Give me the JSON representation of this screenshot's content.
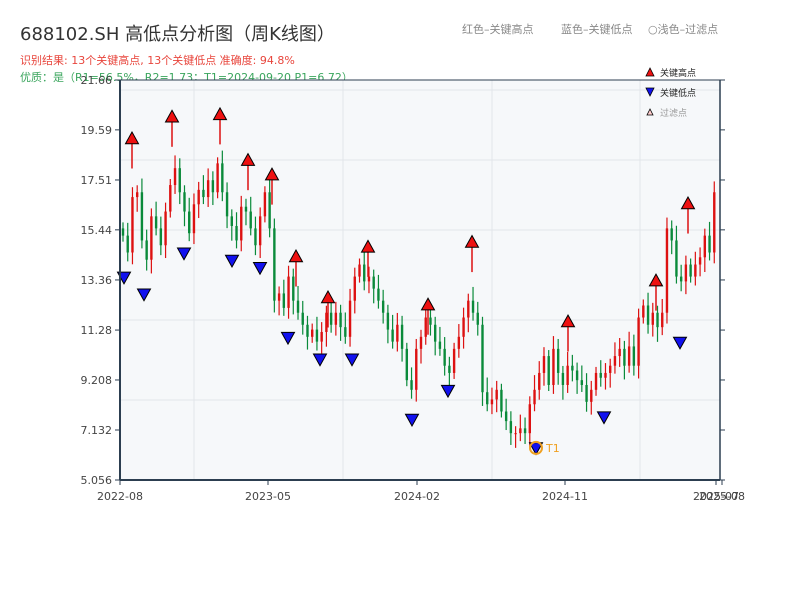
{
  "header": {
    "title": "688102.SH 高低点分析图（周K线图）",
    "result_line": "识别结果: 13个关键高点, 13个关键低点   准确度: 94.8%",
    "quality_line": "优质：是（R1=56.5%，R2=1.73；T1=2024-09-20 P1=6.72）"
  },
  "top_legend": {
    "red": "红色–关键高点",
    "blue": "蓝色–关键低点",
    "light": "○浅色–过滤点"
  },
  "legend": {
    "items": [
      {
        "label": "关键高点",
        "color": "#ee1111",
        "shape": "triangle-up"
      },
      {
        "label": "关键低点",
        "color": "#1111ee",
        "shape": "triangle-down"
      },
      {
        "label": "过滤点",
        "color": "#ffcccc",
        "shape": "triangle-up-hollow"
      }
    ]
  },
  "colors": {
    "up": "#dd1111",
    "down": "#0a8a3a",
    "high_marker": "#ee1111",
    "low_marker": "#1111ee",
    "t1_ring": "#f0a020",
    "plot_bg": "#f6f8fa",
    "grid": "#e2e6ea",
    "axis": "#2c3e50"
  },
  "annotation": {
    "label": "T1",
    "date": "2024-09-20",
    "price": 6.72
  },
  "chart_data": {
    "type": "candlestick",
    "title": "688102.SH 高低点分析图（周K线图）",
    "xlabel": "",
    "ylabel": "",
    "ylim": [
      5.056,
      21.66
    ],
    "yticks": [
      "5.056",
      "7.132",
      "9.208",
      "11.28",
      "13.36",
      "15.44",
      "17.51",
      "19.59",
      "21.66"
    ],
    "xticks": [
      "2022-08",
      "2023-05",
      "2024-02",
      "2024-11",
      "2025-07",
      "2025-08"
    ],
    "grid": true,
    "legend_position": "top-right",
    "key_highs": [
      {
        "date": "2022-09",
        "price": 18.9
      },
      {
        "date": "2022-12",
        "price": 19.8
      },
      {
        "date": "2023-02",
        "price": 19.9
      },
      {
        "date": "2023-04",
        "price": 18.0
      },
      {
        "date": "2023-05",
        "price": 17.4
      },
      {
        "date": "2023-06",
        "price": 14.0
      },
      {
        "date": "2023-08",
        "price": 12.3
      },
      {
        "date": "2023-10",
        "price": 14.4
      },
      {
        "date": "2024-02",
        "price": 12.0
      },
      {
        "date": "2024-05",
        "price": 14.6
      },
      {
        "date": "2024-11",
        "price": 11.3
      },
      {
        "date": "2025-03",
        "price": 13.0
      },
      {
        "date": "2025-05",
        "price": 16.2
      }
    ],
    "key_lows": [
      {
        "date": "2022-08",
        "price": 13.8
      },
      {
        "date": "2022-10",
        "price": 13.1
      },
      {
        "date": "2023-01",
        "price": 14.8
      },
      {
        "date": "2023-03",
        "price": 14.5
      },
      {
        "date": "2023-05",
        "price": 14.2
      },
      {
        "date": "2023-06",
        "price": 11.3
      },
      {
        "date": "2023-08",
        "price": 10.4
      },
      {
        "date": "2023-10",
        "price": 10.4
      },
      {
        "date": "2024-01",
        "price": 7.9
      },
      {
        "date": "2024-03",
        "price": 9.1
      },
      {
        "date": "2024-09",
        "price": 6.72
      },
      {
        "date": "2024-12",
        "price": 8.0
      },
      {
        "date": "2025-04",
        "price": 11.1
      }
    ],
    "series": [
      {
        "name": "weekly close (approx.)",
        "values": [
          15.2,
          14.5,
          16.8,
          17.0,
          15.0,
          14.2,
          16.0,
          15.5,
          14.8,
          16.2,
          17.3,
          18.0,
          17.0,
          16.2,
          15.3,
          16.5,
          17.1,
          16.8,
          17.5,
          17.0,
          18.2,
          17.0,
          16.0,
          15.6,
          15.0,
          16.4,
          16.2,
          15.5,
          14.8,
          16.0,
          17.0,
          15.5,
          12.5,
          12.8,
          12.2,
          13.5,
          12.5,
          12.0,
          11.5,
          11.0,
          11.3,
          10.8,
          11.2,
          12.0,
          11.5,
          12.0,
          11.4,
          11.0,
          12.5,
          13.5,
          14.0,
          13.3,
          13.5,
          13.0,
          12.5,
          12.0,
          11.3,
          10.8,
          11.5,
          10.5,
          9.2,
          8.8,
          10.5,
          11.0,
          11.8,
          11.5,
          10.8,
          10.5,
          9.8,
          9.5,
          10.5,
          11.0,
          11.8,
          12.5,
          12.0,
          11.5,
          8.7,
          8.2,
          8.4,
          8.8,
          7.9,
          7.5,
          7.0,
          7.0,
          7.2,
          7.0,
          8.2,
          8.8,
          9.5,
          10.2,
          9.0,
          10.5,
          9.5,
          9.0,
          9.8,
          9.6,
          9.2,
          9.0,
          8.3,
          8.8,
          9.5,
          9.3,
          9.5,
          9.8,
          10.2,
          10.5,
          9.8,
          10.6,
          9.8,
          11.8,
          12.3,
          11.5,
          12.0,
          11.4,
          12.0,
          15.5,
          15.0,
          13.5,
          13.3,
          14.0,
          13.5,
          14.0,
          14.3,
          15.2,
          14.5,
          17.0
        ]
      }
    ]
  }
}
